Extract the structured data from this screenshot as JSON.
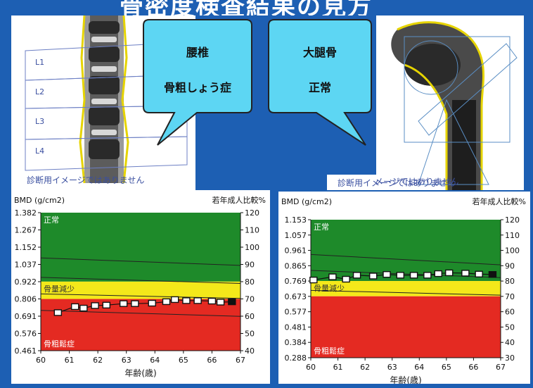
{
  "page": {
    "title": "骨密度検査結果の見方"
  },
  "images": {
    "spine": {
      "labels": [
        "L1",
        "L2",
        "L3",
        "L4"
      ],
      "disclaimer": "診断用イメージではありません"
    },
    "femur": {
      "disclaimer": "診断用イメージではありません"
    }
  },
  "callouts": {
    "spine": {
      "line1": "腰椎",
      "line2": "骨粗しょう症"
    },
    "femur": {
      "line1": "大腿骨",
      "line2": "正常"
    }
  },
  "colors": {
    "background": "#1d5fb3",
    "normal": "#1e8a2a",
    "osteopenia": "#f4e81a",
    "osteoporosis": "#e42a22",
    "callout": "#5dd6f3"
  },
  "chart_data": [
    {
      "type": "line",
      "name": "lumbar-spine",
      "ylabel_left": "BMD (g/cm2)",
      "ylabel_right": "若年成人比較%",
      "xlabel": "年齢(歳)",
      "xlim": [
        60,
        67
      ],
      "ylim": [
        0.461,
        1.382
      ],
      "x_ticks": [
        "60",
        "61",
        "62",
        "63",
        "64",
        "65",
        "66",
        "67"
      ],
      "y_ticks_left": [
        "1.382",
        "1.267",
        "1.152",
        "1.037",
        "0.922",
        "0.806",
        "0.691",
        "0.576",
        "0.461"
      ],
      "y_ticks_right": [
        "120",
        "110",
        "100",
        "90",
        "80",
        "70",
        "60",
        "50",
        "40"
      ],
      "zones": [
        {
          "label": "正常",
          "from": 0.922,
          "to": 1.382,
          "color": "#1e8a2a"
        },
        {
          "label": "骨量減少",
          "from": 0.806,
          "to": 0.922,
          "color": "#f4e81a"
        },
        {
          "label": "骨粗鬆症",
          "from": 0.461,
          "to": 0.806,
          "color": "#e42a22"
        }
      ],
      "reference_lines": [
        {
          "points": [
            [
              60,
              1.08
            ],
            [
              67,
              1.03
            ]
          ]
        },
        {
          "points": [
            [
              60,
              0.95
            ],
            [
              67,
              0.91
            ]
          ]
        },
        {
          "points": [
            [
              60,
              0.84
            ],
            [
              67,
              0.81
            ]
          ]
        },
        {
          "points": [
            [
              60,
              0.73
            ],
            [
              67,
              0.69
            ]
          ]
        }
      ],
      "series": [
        {
          "x": [
            60.6,
            61.2,
            61.5,
            61.9,
            62.3,
            62.9,
            63.3,
            63.9,
            64.4,
            64.7,
            65.1,
            65.5,
            66.0,
            66.3,
            66.7
          ],
          "y": [
            0.715,
            0.755,
            0.745,
            0.762,
            0.765,
            0.775,
            0.775,
            0.778,
            0.788,
            0.802,
            0.795,
            0.795,
            0.792,
            0.785,
            0.787
          ]
        }
      ]
    },
    {
      "type": "line",
      "name": "femur",
      "ylabel_left": "BMD (g/cm2)",
      "ylabel_right": "若年成人比較%",
      "xlabel": "年齢(歳)",
      "xlim": [
        60,
        67
      ],
      "ylim": [
        0.288,
        1.153
      ],
      "x_ticks": [
        "60",
        "61",
        "62",
        "63",
        "64",
        "65",
        "66",
        "67"
      ],
      "y_ticks_left": [
        "1.153",
        "1.057",
        "0.961",
        "0.865",
        "0.769",
        "0.673",
        "0.577",
        "0.481",
        "0.384",
        "0.288"
      ],
      "y_ticks_right": [
        "120",
        "110",
        "100",
        "90",
        "80",
        "70",
        "60",
        "50",
        "40",
        "30"
      ],
      "zones": [
        {
          "label": "正常",
          "from": 0.769,
          "to": 1.153,
          "color": "#1e8a2a"
        },
        {
          "label": "骨量減少",
          "from": 0.673,
          "to": 0.769,
          "color": "#f4e81a"
        },
        {
          "label": "骨粗鬆症",
          "from": 0.288,
          "to": 0.673,
          "color": "#e42a22"
        }
      ],
      "reference_lines": [
        {
          "points": [
            [
              60,
              0.935
            ],
            [
              67,
              0.87
            ]
          ]
        },
        {
          "points": [
            [
              60,
              0.835
            ],
            [
              67,
              0.79
            ]
          ]
        },
        {
          "points": [
            [
              60,
              0.71
            ],
            [
              67,
              0.68
            ]
          ]
        }
      ],
      "series": [
        {
          "x": [
            60.1,
            60.8,
            61.3,
            61.7,
            62.3,
            62.8,
            63.3,
            63.8,
            64.3,
            64.7,
            65.1,
            65.7,
            66.2,
            66.7
          ],
          "y": [
            0.775,
            0.795,
            0.78,
            0.805,
            0.8,
            0.81,
            0.805,
            0.805,
            0.805,
            0.815,
            0.82,
            0.818,
            0.812,
            0.81
          ]
        }
      ]
    }
  ]
}
